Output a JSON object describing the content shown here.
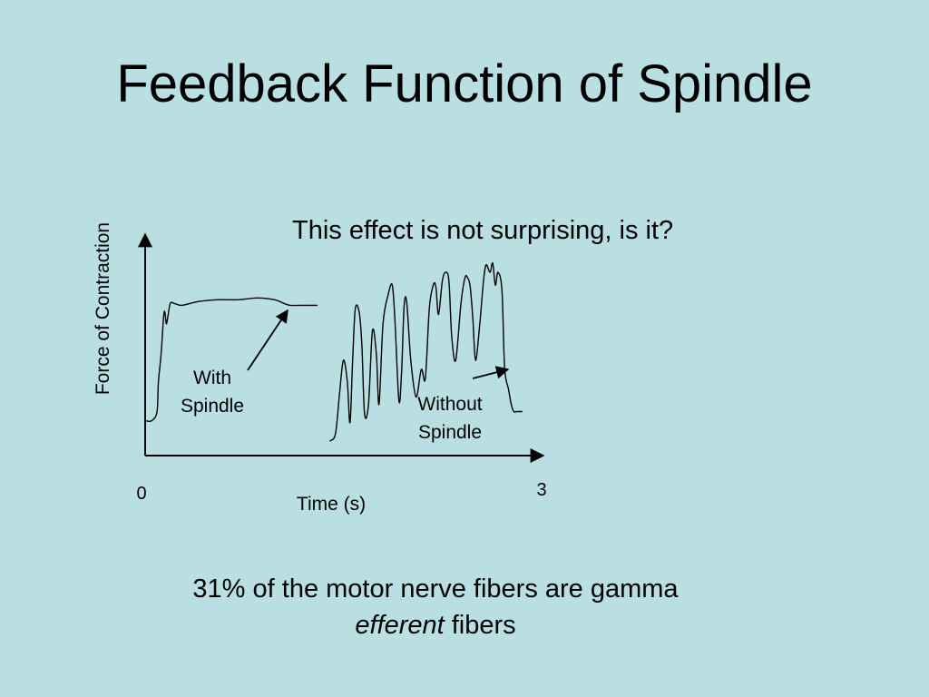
{
  "slide": {
    "title": "Feedback Function of Spindle",
    "question": "This effect is not surprising, is it?",
    "note": {
      "line1": "31% of the motor nerve fibers are gamma",
      "line2_italic": "efferent",
      "line2_rest": " fibers"
    }
  },
  "chart_data": {
    "type": "line",
    "title": "",
    "xlabel": "Time (s)",
    "ylabel": "Force of Contraction",
    "x_ticks": [
      "0",
      "3"
    ],
    "xlim": [
      0,
      3
    ],
    "ylim": [
      0,
      1
    ],
    "grid": false,
    "series": [
      {
        "name": "With Spindle",
        "label_lines": [
          "With",
          "Spindle"
        ],
        "x": [
          0.0,
          0.05,
          0.09,
          0.1,
          0.12,
          0.14,
          0.15,
          0.16,
          0.17,
          0.19,
          0.22,
          0.28,
          0.4,
          0.55,
          0.7,
          0.85,
          0.98,
          1.05,
          1.1,
          1.2,
          1.3
        ],
        "y": [
          0.19,
          0.19,
          0.24,
          0.4,
          0.55,
          0.76,
          0.78,
          0.72,
          0.75,
          0.83,
          0.83,
          0.82,
          0.84,
          0.85,
          0.85,
          0.86,
          0.85,
          0.83,
          0.82,
          0.82,
          0.82
        ]
      },
      {
        "name": "Without Spindle",
        "label_lines": [
          "Without",
          "Spindle"
        ],
        "x": [
          1.4,
          1.44,
          1.47,
          1.5,
          1.53,
          1.55,
          1.57,
          1.59,
          1.62,
          1.64,
          1.66,
          1.69,
          1.72,
          1.75,
          1.77,
          1.8,
          1.84,
          1.87,
          1.89,
          1.92,
          1.94,
          1.96,
          1.98,
          2.01,
          2.05,
          2.09,
          2.12,
          2.15,
          2.18,
          2.2,
          2.22,
          2.25,
          2.28,
          2.3,
          2.32,
          2.35,
          2.39,
          2.42,
          2.44,
          2.46,
          2.48,
          2.5,
          2.53,
          2.56,
          2.58,
          2.61,
          2.63,
          2.65,
          2.67,
          2.7,
          2.72,
          2.75,
          2.77,
          2.79,
          2.81,
          2.83,
          2.85
        ],
        "y": [
          0.08,
          0.12,
          0.33,
          0.52,
          0.4,
          0.18,
          0.52,
          0.8,
          0.78,
          0.6,
          0.23,
          0.28,
          0.68,
          0.55,
          0.28,
          0.72,
          0.88,
          0.93,
          0.74,
          0.3,
          0.45,
          0.82,
          0.83,
          0.52,
          0.32,
          0.47,
          0.42,
          0.8,
          0.93,
          0.92,
          0.77,
          0.96,
          1.0,
          0.94,
          0.65,
          0.52,
          0.83,
          0.97,
          0.97,
          0.92,
          0.74,
          0.52,
          0.7,
          0.95,
          1.04,
          1.0,
          1.05,
          0.93,
          1.0,
          0.9,
          0.48,
          0.36,
          0.28,
          0.24,
          0.24,
          0.24,
          0.24
        ]
      }
    ]
  }
}
